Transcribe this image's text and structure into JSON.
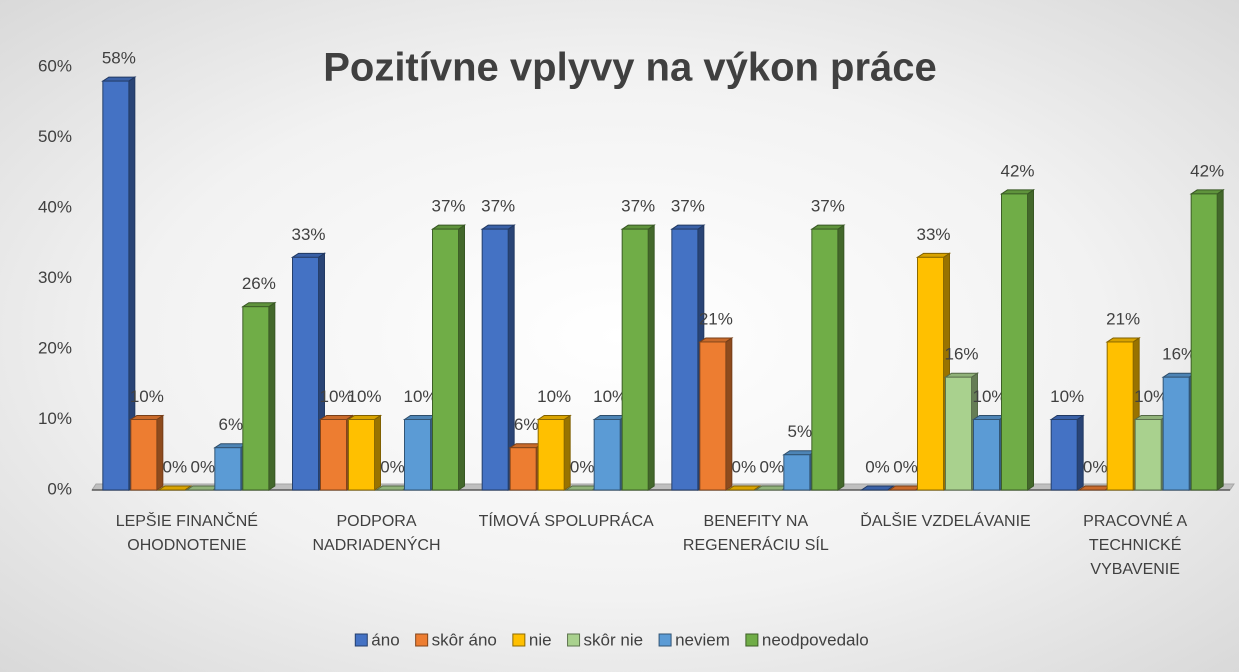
{
  "chart_data": {
    "type": "bar3d",
    "title": "Pozitívne vplyvy na výkon práce",
    "categories": [
      "LEPŠIE FINANČNÉ OHODNOTENIE",
      "PODPORA NADRIADENÝCH",
      "TÍMOVÁ SPOLUPRÁCA",
      "BENEFITY NA REGENERÁCIU SÍL",
      "ĎALŠIE VZDELÁVANIE",
      "PRACOVNÉ A TECHNICKÉ VYBAVENIE"
    ],
    "series": [
      {
        "name": "áno",
        "color": "#4472c4",
        "values": [
          58,
          33,
          37,
          37,
          0,
          10
        ],
        "value_labels": [
          "58%",
          "33%",
          "37%",
          "37%",
          "0%",
          "10%"
        ]
      },
      {
        "name": "skôr áno",
        "color": "#ed7d31",
        "values": [
          10,
          10,
          6,
          21,
          0,
          0
        ],
        "value_labels": [
          "10%",
          "10%",
          "6%",
          "21%",
          "0%",
          "0%"
        ]
      },
      {
        "name": "nie",
        "color": "#ffc000",
        "values": [
          0,
          10,
          10,
          0,
          33,
          21
        ],
        "value_labels": [
          "0%",
          "10%",
          "10%",
          "0%",
          "33%",
          "21%"
        ]
      },
      {
        "name": "skôr nie",
        "color": "#a9d18e",
        "values": [
          0,
          0,
          0,
          0,
          16,
          10
        ],
        "value_labels": [
          "0%",
          "0%",
          "0%",
          "0%",
          "16%",
          "10%"
        ]
      },
      {
        "name": "neviem",
        "color": "#5b9bd5",
        "values": [
          6,
          10,
          10,
          5,
          10,
          16
        ],
        "value_labels": [
          "6%",
          "10%",
          "10%",
          "5%",
          "10%",
          "16%"
        ]
      },
      {
        "name": "neodpovedalo",
        "color": "#70ad47",
        "values": [
          26,
          37,
          37,
          37,
          42,
          42
        ],
        "value_labels": [
          "26%",
          "37%",
          "37%",
          "37%",
          "42%",
          "42%"
        ]
      }
    ],
    "ylim": [
      0,
      60
    ],
    "yticks": [
      {
        "value": 0,
        "label": "0%"
      },
      {
        "value": 10,
        "label": "10%"
      },
      {
        "value": 20,
        "label": "20%"
      },
      {
        "value": 30,
        "label": "30%"
      },
      {
        "value": 40,
        "label": "40%"
      },
      {
        "value": 50,
        "label": "50%"
      },
      {
        "value": 60,
        "label": "60%"
      }
    ],
    "legend": "bottom"
  }
}
